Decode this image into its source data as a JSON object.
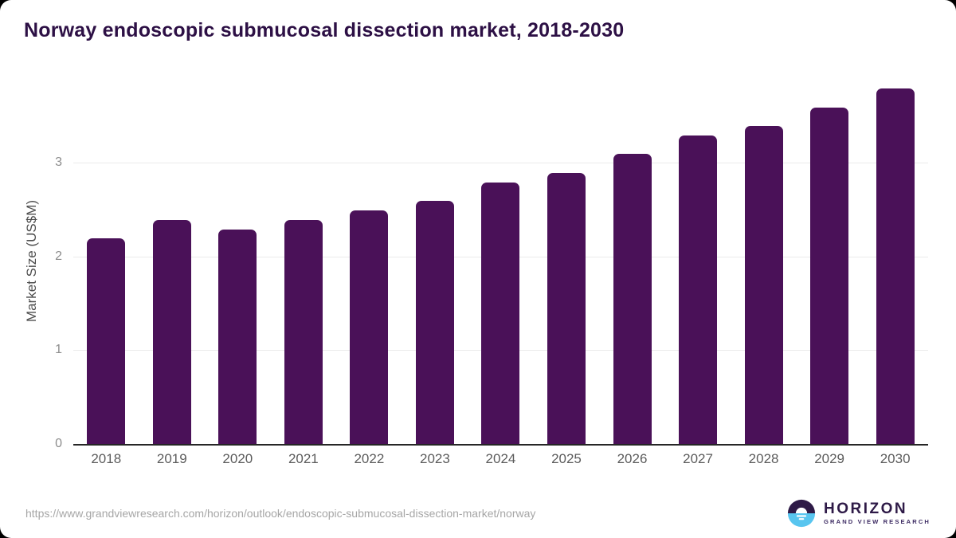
{
  "title": "Norway endoscopic submucosal dissection market, 2018-2030",
  "chart_data": {
    "type": "bar",
    "categories": [
      "2018",
      "2019",
      "2020",
      "2021",
      "2022",
      "2023",
      "2024",
      "2025",
      "2026",
      "2027",
      "2028",
      "2029",
      "2030"
    ],
    "values": [
      2.2,
      2.4,
      2.3,
      2.4,
      2.5,
      2.6,
      2.8,
      2.9,
      3.1,
      3.3,
      3.4,
      3.6,
      3.8
    ],
    "title": "Norway endoscopic submucosal dissection market, 2018-2030",
    "xlabel": "",
    "ylabel": "Market Size (US$M)",
    "ylim": [
      0,
      3.92
    ],
    "yticks": [
      0,
      1,
      2,
      3
    ],
    "grid": "horizontal gridlines at 1, 2, 3",
    "legend": "none",
    "bar_color": "#4a1158"
  },
  "colors": {
    "bar": "#4a1158",
    "title": "#2d1045",
    "gridline": "#ebebeb",
    "axis": "#262626",
    "logo_purple": "#2e1a47",
    "logo_blue": "#58c5ef"
  },
  "footer": {
    "source_url": "https://www.grandviewresearch.com/horizon/outlook/endoscopic-submucosal-dissection-market/norway",
    "logo_name": "HORIZON",
    "logo_subtitle": "GRAND VIEW RESEARCH"
  }
}
